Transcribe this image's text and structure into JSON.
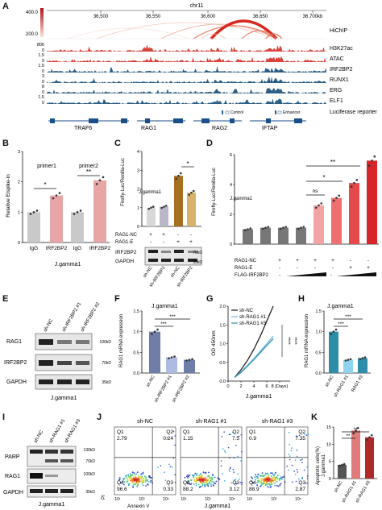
{
  "panel_letters": [
    "A",
    "B",
    "C",
    "D",
    "E",
    "F",
    "G",
    "H",
    "I",
    "J",
    "K"
  ],
  "panelA": {
    "chrom": "chr11",
    "ticks": [
      "36,500",
      "36,550",
      "36,600",
      "36,650",
      "36,700kb"
    ],
    "hichip_scale": [
      "400.0",
      "200.0"
    ],
    "tracks": [
      {
        "label": "HiChIP",
        "scale": "",
        "color": "#e03a2c"
      },
      {
        "label": "H3K27ac",
        "scale": "800",
        "color": "#d9413a"
      },
      {
        "label": "ATAC",
        "scale": "1.5",
        "color": "#d9413a"
      },
      {
        "label": "IRF2BP2",
        "scale": "1.5",
        "color": "#2d5f86"
      },
      {
        "label": "RUNX1",
        "scale": "3",
        "color": "#2d5f86"
      },
      {
        "label": "ERG",
        "scale": "8",
        "color": "#2d5f86"
      },
      {
        "label": "ELF1",
        "scale": "1.5",
        "color": "#2d5f86"
      },
      {
        "label": "Luciferase reporter",
        "scale": "",
        "color": "#2d5f86"
      }
    ],
    "track_scales_zero": "0",
    "legend_control": "Control",
    "legend_enhancer": "Enhancer",
    "genes": [
      "TRAF6",
      "RAG1",
      "RAG2",
      "IFTAP"
    ]
  },
  "chart_data": [
    {
      "id": "B",
      "type": "bar",
      "ylabel": "Relative Elspike-in",
      "xlabel": "J.gamma1",
      "group_labels": [
        "primer1",
        "primer2"
      ],
      "categories": [
        "IgG",
        "IRF2BP2",
        "IgG",
        "IRF2BP2"
      ],
      "values": [
        1.0,
        1.55,
        1.0,
        2.05
      ],
      "colors": [
        "#c9c9c9",
        "#e7a6a6",
        "#c9c9c9",
        "#e7a6a6"
      ],
      "significance": [
        "*",
        "**"
      ]
    },
    {
      "id": "C",
      "type": "bar",
      "title": "J.gamma1",
      "ylabel": "Firefly-Luc/Renilla-Luc",
      "values": [
        1.0,
        1.05,
        2.7,
        1.8
      ],
      "colors": [
        "#d8d8d8",
        "#b8b8c8",
        "#a5701f",
        "#d8b26a"
      ],
      "significance": [
        "*"
      ],
      "conditions": [
        {
          "name": "RAG1-NC",
          "marks": [
            "+",
            "+",
            "-",
            "-"
          ]
        },
        {
          "name": "RAG1-E",
          "marks": [
            "-",
            "-",
            "+",
            "+"
          ]
        }
      ],
      "blot_labels": [
        "IRF2BP2",
        "GAPDH"
      ],
      "blot_kd": [
        "70kD",
        "35kD"
      ],
      "lanes": [
        "sh-NC",
        "sh-IRF2BP2",
        "sh-NC",
        "sh-IRF2BP2"
      ]
    },
    {
      "id": "D",
      "type": "bar",
      "title": "J.gamma1",
      "ylabel": "Firefly-Luc/Renilla-Luc",
      "values": [
        1.0,
        1.1,
        1.1,
        1.1,
        2.6,
        3.1,
        4.1,
        5.6
      ],
      "colors": [
        "#777777",
        "#777777",
        "#777777",
        "#777777",
        "#f2a3a3",
        "#ee6f6f",
        "#e44a4a",
        "#d6262a"
      ],
      "significance": [
        "ns",
        "*",
        "**"
      ],
      "conditions": [
        {
          "name": "RAG1-NC",
          "marks": [
            "+",
            "+",
            "+",
            "+",
            "-",
            "-",
            "-",
            "-"
          ]
        },
        {
          "name": "RAG1-E",
          "marks": [
            "-",
            "-",
            "-",
            "-",
            "+",
            "+",
            "+",
            "+"
          ]
        }
      ],
      "gradient_label": "FLAG-IRF2BP2",
      "gradient_marks": [
        "-",
        "-"
      ]
    },
    {
      "id": "F",
      "type": "bar",
      "title": "J.gamma1",
      "ylabel": "RAG1 mRNA expression",
      "categories": [
        "sh-NC",
        "sh-IRF2BP2 #1",
        "sh-IRF2BP2 #2"
      ],
      "values": [
        1.0,
        0.38,
        0.32
      ],
      "colors": [
        "#6f7ea8",
        "#aebbe0",
        "#6f7ea8"
      ],
      "significance": [
        "***",
        "***"
      ]
    },
    {
      "id": "G",
      "type": "line",
      "ylabel": "OD 450nm",
      "xlabel": "J.gamma1",
      "x": [
        1,
        2,
        3,
        4,
        5,
        6,
        7
      ],
      "xticks": [
        "0",
        "2",
        "4",
        "6",
        "8 (Days)"
      ],
      "series": [
        {
          "name": "sh-NC",
          "values": [
            0.1,
            0.3,
            0.55,
            0.85,
            1.2,
            1.6,
            2.0
          ],
          "color": "#111111"
        },
        {
          "name": "sh-RAG1 #1",
          "values": [
            0.1,
            0.25,
            0.42,
            0.6,
            0.8,
            1.0,
            1.2
          ],
          "color": "#6fb6e3"
        },
        {
          "name": "sh-RAG1 #3",
          "values": [
            0.1,
            0.23,
            0.4,
            0.57,
            0.76,
            0.95,
            1.13
          ],
          "color": "#2e8da8"
        }
      ],
      "significance": [
        "****",
        "****"
      ]
    },
    {
      "id": "H",
      "type": "bar",
      "title": "J.gamma1",
      "ylabel": "RAG1 mRNA expression",
      "categories": [
        "sh-NC",
        "sh-RAG1 #1",
        "RAG1 #3"
      ],
      "values": [
        1.0,
        0.32,
        0.36
      ],
      "colors": [
        "#2e8da8",
        "#8fd3ec",
        "#2e8da8"
      ],
      "significance": [
        "***",
        "***"
      ]
    },
    {
      "id": "K",
      "type": "bar",
      "ylabel": "Apoptotic cells(%)",
      "title": "J.gamma1",
      "categories": [
        "sh-NC",
        "sh-RAG1 #1",
        "sh-RAG1 #3"
      ],
      "values": [
        4,
        14,
        12
      ],
      "colors": [
        "#555555",
        "#e07b7b",
        "#b02a2a"
      ],
      "significance": [
        "**",
        "**"
      ]
    }
  ],
  "panelE": {
    "lanes": [
      "sh-NC",
      "sh-IRF2BP2 #1",
      "sh-IRF2BP2 #2"
    ],
    "rows": [
      "RAG1",
      "IRF2BP2",
      "GAPDH"
    ],
    "kd": [
      "100kD",
      "70kD",
      "35kD"
    ],
    "caption": "J.gamma1"
  },
  "panelI": {
    "lanes": [
      "sh-NC",
      "sh-RAG1 #1",
      "sh-RAG1 #3"
    ],
    "rows": [
      "PARP",
      "RAG1",
      "GAPDH"
    ],
    "kd": [
      "130kD",
      "70kD",
      "100kD",
      "35kD"
    ],
    "caption": "J.gamma1"
  },
  "panelJ": {
    "plots": [
      {
        "title": "sh-NC",
        "q1": "2.79",
        "q2": "0.24",
        "q3": "0.33",
        "q4": "96.6"
      },
      {
        "title": "sh-RAG1 #1",
        "q1": "1.15",
        "q2": "7.5",
        "q3": "3.12",
        "q4": "88.2"
      },
      {
        "title": "sh-RAG1 #3",
        "q1": "0.9",
        "q2": "7.35",
        "q3": "2.87",
        "q4": "88.9"
      }
    ],
    "qlabels": [
      "Q1",
      "Q2",
      "Q3",
      "Q4"
    ],
    "xlabel": "Annexin V",
    "ylabel": "PI",
    "caption": "J.gamma1",
    "ticks": [
      "10¹",
      "10³",
      "10⁵"
    ]
  }
}
